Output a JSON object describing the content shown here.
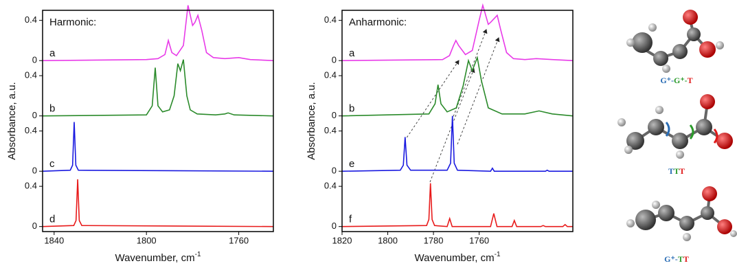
{
  "chart_data": [
    {
      "type": "line",
      "title": "Harmonic:",
      "xlabel": "Wavenumber, cm",
      "xlabel_sup": "-1",
      "ylabel": "Absorbance, a.u.",
      "xlim": [
        1845,
        1745
      ],
      "xticks": [
        1840,
        1800,
        1760
      ],
      "series": [
        {
          "name": "a",
          "color": "#e83ae8",
          "ylim": [
            -0.05,
            0.5
          ],
          "yticks": [
            0,
            0.4
          ],
          "x": [
            1845,
            1800,
            1795,
            1792,
            1790.5,
            1789,
            1787,
            1784,
            1782,
            1780,
            1779,
            1777.7,
            1776,
            1774,
            1771,
            1766,
            1760,
            1755,
            1745
          ],
          "values": [
            0,
            0.01,
            0.02,
            0.06,
            0.2,
            0.08,
            0.05,
            0.15,
            0.55,
            0.35,
            0.38,
            0.45,
            0.3,
            0.08,
            0.03,
            0.02,
            0.03,
            0.01,
            0
          ]
        },
        {
          "name": "b",
          "color": "#2a8a2a",
          "ylim": [
            -0.05,
            0.5
          ],
          "yticks": [
            0,
            0.4
          ],
          "x": [
            1845,
            1800,
            1797.5,
            1796.2,
            1795,
            1793,
            1790,
            1788,
            1786.4,
            1785.3,
            1784,
            1782.5,
            1781,
            1778,
            1770,
            1766,
            1764.6,
            1762,
            1745
          ],
          "values": [
            0,
            0.01,
            0.1,
            0.48,
            0.1,
            0.04,
            0.06,
            0.2,
            0.52,
            0.45,
            0.56,
            0.2,
            0.06,
            0.02,
            0.01,
            0.02,
            0.03,
            0.01,
            0
          ]
        },
        {
          "name": "c",
          "color": "#1a1ae0",
          "ylim": [
            -0.05,
            0.5
          ],
          "yticks": [
            0,
            0.4
          ],
          "x": [
            1845,
            1833,
            1832,
            1831.3,
            1830.6,
            1829.5,
            1745
          ],
          "values": [
            0,
            0.01,
            0.06,
            0.49,
            0.06,
            0.01,
            0
          ]
        },
        {
          "name": "d",
          "color": "#e81a1a",
          "ylim": [
            -0.05,
            0.5
          ],
          "yticks": [
            0,
            0.4
          ],
          "x": [
            1845,
            1831.5,
            1830.5,
            1829.8,
            1829.1,
            1828,
            1745
          ],
          "values": [
            0,
            0.01,
            0.06,
            0.47,
            0.06,
            0.01,
            0
          ]
        }
      ]
    },
    {
      "type": "line",
      "title": "Anharmonic:",
      "xlabel": "Wavenumber, cm",
      "xlabel_sup": "-1",
      "ylabel": "Absorbance, a.u.",
      "xlim": [
        1820,
        1719
      ],
      "xticks": [
        1820,
        1800,
        1780,
        1760
      ],
      "series": [
        {
          "name": "a",
          "color": "#e83ae8",
          "ylim": [
            -0.05,
            0.5
          ],
          "yticks": [
            0,
            0.4
          ],
          "x": [
            1820,
            1776,
            1773,
            1771.2,
            1770.2,
            1769,
            1766,
            1763,
            1760,
            1758.4,
            1756,
            1755,
            1752.1,
            1750.5,
            1748,
            1745,
            1740,
            1735,
            1728,
            1719
          ],
          "values": [
            0,
            0.01,
            0.05,
            0.15,
            0.2,
            0.15,
            0.06,
            0.1,
            0.4,
            0.55,
            0.36,
            0.38,
            0.45,
            0.3,
            0.08,
            0.02,
            0.01,
            0.02,
            0.01,
            0
          ]
        },
        {
          "name": "b",
          "color": "#2a8a2a",
          "ylim": [
            -0.05,
            0.5
          ],
          "yticks": [
            0,
            0.4
          ],
          "x": [
            1820,
            1782,
            1779.3,
            1778,
            1776.7,
            1774,
            1770,
            1767,
            1764.7,
            1763,
            1760.8,
            1759,
            1756,
            1750,
            1740,
            1733.8,
            1728,
            1719
          ],
          "values": [
            0,
            0.02,
            0.12,
            0.31,
            0.12,
            0.04,
            0.08,
            0.3,
            0.55,
            0.45,
            0.58,
            0.35,
            0.08,
            0.02,
            0.02,
            0.05,
            0.02,
            0
          ]
        },
        {
          "name": "e",
          "color": "#1a1ae0",
          "ylim": [
            -0.05,
            0.5
          ],
          "yticks": [
            0,
            0.4
          ],
          "x": [
            1820,
            1794.5,
            1793.2,
            1792.4,
            1791.6,
            1790,
            1774,
            1772.5,
            1771.7,
            1770.9,
            1769.5,
            1755,
            1754.2,
            1753.4,
            1731,
            1730.2,
            1729.4,
            1719
          ],
          "values": [
            0,
            0.01,
            0.06,
            0.34,
            0.06,
            0.01,
            0.01,
            0.08,
            0.55,
            0.08,
            0.01,
            0,
            0.03,
            0,
            0,
            0.01,
            0,
            0
          ]
        },
        {
          "name": "f",
          "color": "#e81a1a",
          "ylim": [
            -0.05,
            0.5
          ],
          "yticks": [
            0,
            0.4
          ],
          "x": [
            1820,
            1783,
            1782,
            1781.3,
            1780.6,
            1779.5,
            1774,
            1772.9,
            1771.8,
            1755,
            1753.6,
            1752.2,
            1745.6,
            1744.6,
            1743.6,
            1733,
            1732,
            1731,
            1723.4,
            1722.4,
            1721.4,
            1719
          ],
          "values": [
            0,
            0.01,
            0.07,
            0.43,
            0.07,
            0.01,
            0,
            0.08,
            0,
            0,
            0.13,
            0,
            0,
            0.06,
            0,
            0,
            0.01,
            0,
            0,
            0.02,
            0,
            0
          ]
        }
      ]
    }
  ],
  "molecules": [
    {
      "label_parts": [
        {
          "text": "G⁺-",
          "color": "#2a6db5"
        },
        {
          "text": "G⁺-",
          "color": "#2a9a2a"
        },
        {
          "text": "T",
          "color": "#e01a1a"
        }
      ]
    },
    {
      "label_parts": [
        {
          "text": "T",
          "color": "#2a6db5"
        },
        {
          "text": "T",
          "color": "#2a9a2a"
        },
        {
          "text": "T",
          "color": "#e01a1a"
        }
      ]
    },
    {
      "label_parts": [
        {
          "text": "G⁺-",
          "color": "#2a6db5"
        },
        {
          "text": "T",
          "color": "#2a9a2a"
        },
        {
          "text": "T",
          "color": "#e01a1a"
        }
      ]
    }
  ]
}
